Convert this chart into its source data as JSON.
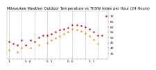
{
  "title": "Milwaukee Weather Outdoor Temperature vs THSW Index per Hour (24 Hours)",
  "bg_color": "#ffffff",
  "plot_bg_color": "#ffffff",
  "text_color": "#000000",
  "grid_color": "#aaaaaa",
  "hours": [
    1,
    2,
    3,
    4,
    5,
    6,
    7,
    8,
    9,
    10,
    11,
    12,
    13,
    14,
    15,
    16,
    17,
    18,
    19,
    20,
    21,
    22,
    23,
    24
  ],
  "temp_values": [
    46,
    44,
    43,
    47,
    43,
    47,
    46,
    50,
    52,
    52,
    53,
    55,
    57,
    58,
    59,
    62,
    62,
    61,
    60,
    58,
    55,
    52,
    52,
    70
  ],
  "thsw_values": [
    38,
    null,
    36,
    40,
    null,
    40,
    null,
    43,
    null,
    45,
    47,
    49,
    51,
    53,
    55,
    58,
    57,
    56,
    54,
    51,
    48,
    44,
    null,
    null
  ],
  "temp_color": "#cc0000",
  "thsw_color": "#ff8800",
  "ylim_min": 30,
  "ylim_max": 75,
  "marker_size": 3,
  "title_fontsize": 3.8,
  "tick_fontsize": 3.2,
  "ytick_labels": [
    "35",
    "40",
    "45",
    "50",
    "55",
    "60",
    "65",
    "70"
  ],
  "ytick_values": [
    35,
    40,
    45,
    50,
    55,
    60,
    65,
    70
  ],
  "xtick_labels": [
    "1",
    "",
    "",
    "",
    "5",
    "",
    "",
    "",
    "",
    "",
    "1",
    "",
    "",
    "",
    "5",
    "",
    "",
    "",
    "",
    "",
    "1",
    "",
    "",
    "",
    "5"
  ],
  "grid_dashed_hours": [
    1,
    4,
    7,
    10,
    13,
    16,
    19,
    22
  ]
}
